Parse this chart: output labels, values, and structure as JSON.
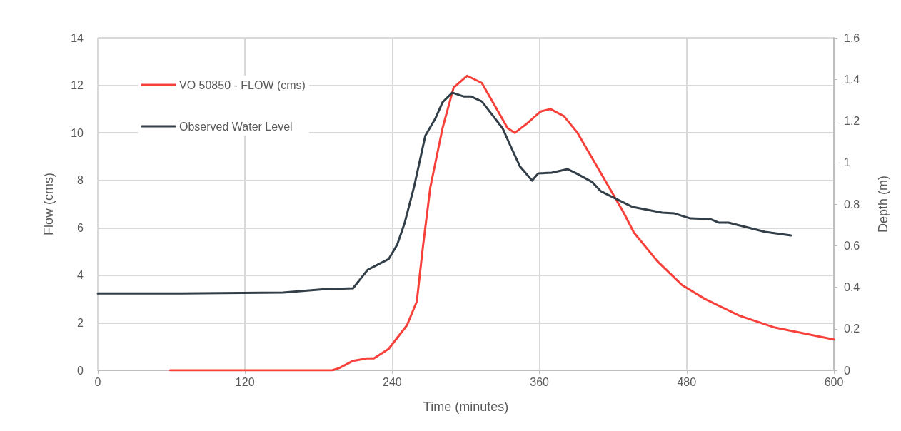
{
  "chart_data": {
    "type": "line",
    "xlabel": "Time (minutes)",
    "ylabel": "Flow (cms)",
    "y2label": "Depth (m)",
    "xlim": [
      0,
      600
    ],
    "xticks": [
      0,
      120,
      240,
      360,
      480,
      600
    ],
    "ylim": [
      0,
      14
    ],
    "yticks": [
      0,
      2,
      4,
      6,
      8,
      10,
      12,
      14
    ],
    "y2lim": [
      0,
      1.6
    ],
    "y2ticks": [
      0,
      0.2,
      0.4,
      0.6,
      0.8,
      1,
      1.2,
      1.4,
      1.6
    ],
    "grid": true,
    "legend": "top left",
    "marker": "none",
    "line_style": "solid",
    "series": [
      {
        "name": "VO 50850 - FLOW (cms)",
        "color": "#f8403a",
        "x": [
          59,
          191,
          197,
          208,
          219,
          225,
          237,
          252,
          260,
          265,
          271,
          281,
          290,
          301,
          313,
          323,
          334,
          340,
          350,
          361,
          369,
          380,
          391,
          409,
          428,
          437,
          456,
          476,
          495,
          523,
          552,
          600
        ],
        "values": [
          0,
          0,
          0.1,
          0.4,
          0.5,
          0.5,
          0.9,
          1.9,
          2.9,
          5.2,
          7.7,
          10.2,
          11.9,
          12.4,
          12.1,
          11.2,
          10.2,
          10,
          10.4,
          10.9,
          11,
          10.7,
          10,
          8.4,
          6.7,
          5.8,
          4.6,
          3.6,
          3,
          2.3,
          1.8,
          1.3
        ]
      },
      {
        "name": "Observed Water Level",
        "color": "#323e48",
        "axis": "y2",
        "x": [
          0,
          65,
          151,
          183,
          208,
          220,
          227,
          237,
          244,
          250,
          258,
          267,
          275,
          281,
          289,
          298,
          304,
          313,
          321,
          330,
          336,
          344,
          354,
          359,
          370,
          383,
          390,
          403,
          410,
          418,
          436,
          460,
          470,
          483,
          499,
          506,
          514,
          544,
          565
        ],
        "values": [
          0.37,
          0.37,
          0.374,
          0.39,
          0.395,
          0.484,
          0.505,
          0.535,
          0.604,
          0.707,
          0.889,
          1.13,
          1.21,
          1.29,
          1.336,
          1.318,
          1.318,
          1.294,
          1.233,
          1.164,
          1.085,
          0.982,
          0.913,
          0.948,
          0.951,
          0.968,
          0.948,
          0.906,
          0.862,
          0.838,
          0.786,
          0.759,
          0.755,
          0.731,
          0.728,
          0.711,
          0.711,
          0.666,
          0.649
        ]
      }
    ]
  }
}
